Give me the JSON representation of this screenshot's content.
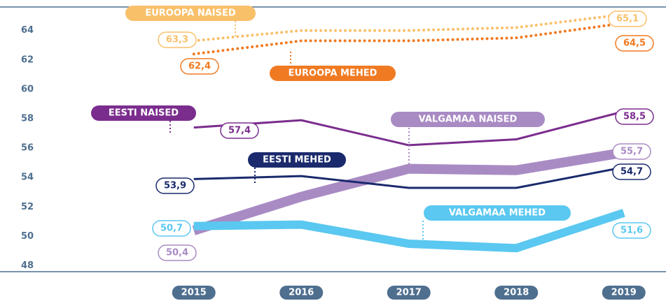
{
  "chart_data": {
    "type": "line",
    "categories": [
      "2015",
      "2016",
      "2017",
      "2018",
      "2019"
    ],
    "ylim": [
      47.6,
      65.6
    ],
    "yticks": [
      48,
      50,
      52,
      54,
      56,
      58,
      60,
      62,
      64
    ],
    "grid": false,
    "series": [
      {
        "name": "EUROOPA NAISED",
        "color": "#f9c06a",
        "values": [
          63.3,
          64.0,
          64.0,
          64.2,
          65.1
        ],
        "value_labels": [
          "63,3",
          null,
          null,
          null,
          "65,1"
        ]
      },
      {
        "name": "EUROOPA MEHED",
        "color": "#f07a22",
        "values": [
          62.4,
          63.3,
          63.3,
          63.5,
          64.5
        ],
        "value_labels": [
          "62,4",
          null,
          null,
          null,
          "64,5"
        ]
      },
      {
        "name": "EESTI NAISED",
        "color": "#7b2d8e",
        "values": [
          57.4,
          57.9,
          56.2,
          56.6,
          58.5
        ],
        "value_labels": [
          "57,4",
          null,
          null,
          null,
          "58,5"
        ]
      },
      {
        "name": "EESTI MEHED",
        "color": "#1a2a6c",
        "values": [
          53.9,
          54.1,
          53.3,
          53.3,
          54.7
        ],
        "value_labels": [
          "53,9",
          null,
          null,
          null,
          "54,7"
        ]
      },
      {
        "name": "VALGAMAA NAISED",
        "color": "#a98bc4",
        "values": [
          50.4,
          52.7,
          54.6,
          54.5,
          55.7
        ],
        "value_labels": [
          "50,4",
          null,
          null,
          null,
          "55,7"
        ]
      },
      {
        "name": "VALGAMAA MEHED",
        "color": "#5ac8f0",
        "values": [
          50.7,
          50.8,
          49.5,
          49.2,
          51.6
        ],
        "value_labels": [
          "50,7",
          null,
          null,
          null,
          "51,6"
        ]
      }
    ]
  }
}
